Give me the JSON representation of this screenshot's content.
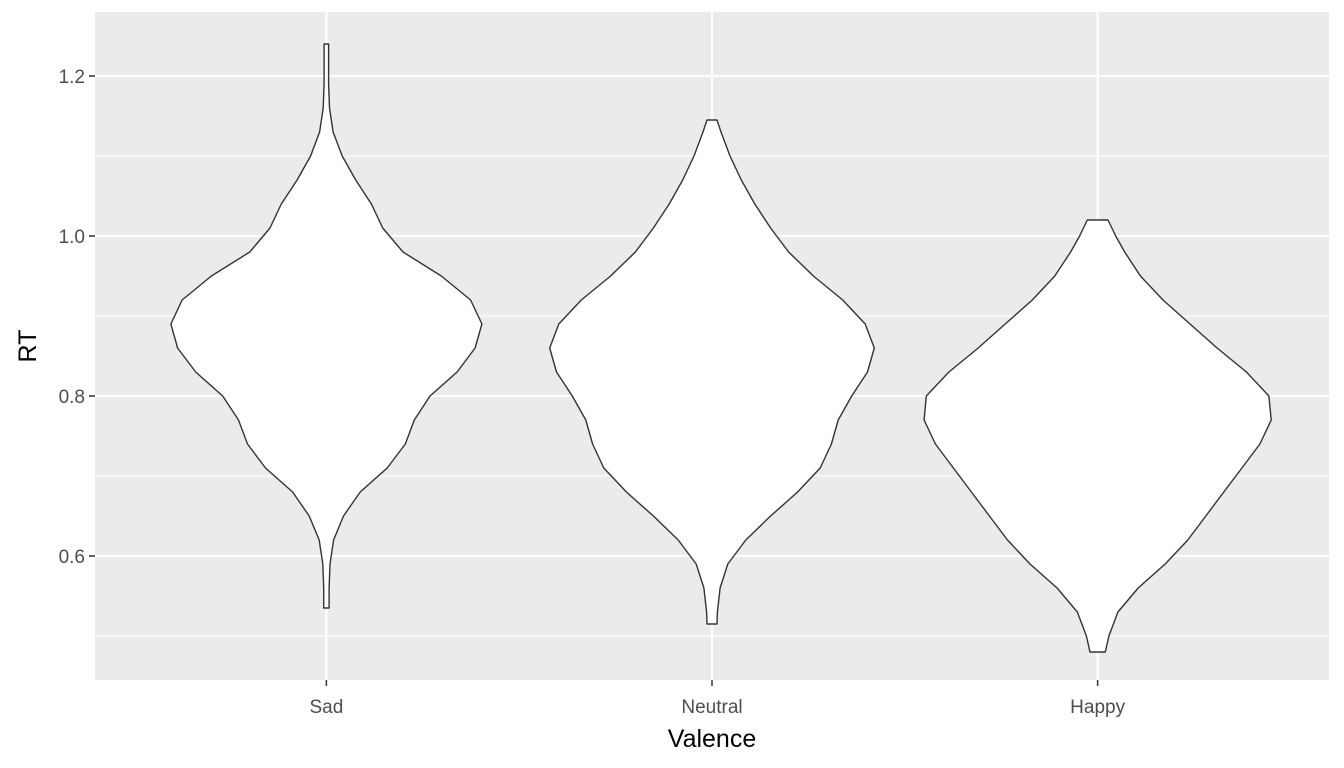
{
  "chart_data": {
    "type": "violin",
    "xlabel": "Valence",
    "ylabel": "RT",
    "categories": [
      "Sad",
      "Neutral",
      "Happy"
    ],
    "ylim": [
      0.445,
      1.28
    ],
    "yticks": [
      0.6,
      0.8,
      1.0,
      1.2
    ],
    "ytick_labels": [
      "0.6",
      "0.8",
      "1.0",
      "1.2"
    ],
    "grid": true,
    "legend": "none",
    "colors": {
      "panel": "#ebebeb",
      "grid": "#ffffff",
      "fill": "#ffffff",
      "outline": "#333333"
    },
    "violins": [
      {
        "category": "Sad",
        "profile": [
          [
            0.535,
            0.006
          ],
          [
            0.56,
            0.006
          ],
          [
            0.59,
            0.008
          ],
          [
            0.62,
            0.016
          ],
          [
            0.65,
            0.038
          ],
          [
            0.68,
            0.075
          ],
          [
            0.71,
            0.135
          ],
          [
            0.74,
            0.175
          ],
          [
            0.77,
            0.195
          ],
          [
            0.8,
            0.23
          ],
          [
            0.83,
            0.29
          ],
          [
            0.86,
            0.33
          ],
          [
            0.89,
            0.345
          ],
          [
            0.92,
            0.32
          ],
          [
            0.95,
            0.255
          ],
          [
            0.98,
            0.17
          ],
          [
            1.01,
            0.125
          ],
          [
            1.04,
            0.1
          ],
          [
            1.07,
            0.065
          ],
          [
            1.1,
            0.035
          ],
          [
            1.13,
            0.015
          ],
          [
            1.16,
            0.007
          ],
          [
            1.19,
            0.005
          ],
          [
            1.24,
            0.005
          ]
        ]
      },
      {
        "category": "Neutral",
        "profile": [
          [
            0.515,
            0.011
          ],
          [
            0.53,
            0.012
          ],
          [
            0.56,
            0.018
          ],
          [
            0.59,
            0.035
          ],
          [
            0.62,
            0.075
          ],
          [
            0.65,
            0.13
          ],
          [
            0.68,
            0.19
          ],
          [
            0.71,
            0.24
          ],
          [
            0.74,
            0.265
          ],
          [
            0.77,
            0.28
          ],
          [
            0.8,
            0.31
          ],
          [
            0.83,
            0.345
          ],
          [
            0.86,
            0.36
          ],
          [
            0.89,
            0.34
          ],
          [
            0.92,
            0.29
          ],
          [
            0.95,
            0.225
          ],
          [
            0.98,
            0.17
          ],
          [
            1.01,
            0.13
          ],
          [
            1.04,
            0.095
          ],
          [
            1.07,
            0.065
          ],
          [
            1.1,
            0.04
          ],
          [
            1.13,
            0.02
          ],
          [
            1.145,
            0.011
          ]
        ]
      },
      {
        "category": "Happy",
        "profile": [
          [
            0.48,
            0.017
          ],
          [
            0.5,
            0.025
          ],
          [
            0.53,
            0.045
          ],
          [
            0.56,
            0.09
          ],
          [
            0.59,
            0.15
          ],
          [
            0.62,
            0.2
          ],
          [
            0.65,
            0.24
          ],
          [
            0.68,
            0.28
          ],
          [
            0.71,
            0.32
          ],
          [
            0.74,
            0.36
          ],
          [
            0.77,
            0.385
          ],
          [
            0.8,
            0.38
          ],
          [
            0.83,
            0.33
          ],
          [
            0.86,
            0.265
          ],
          [
            0.89,
            0.205
          ],
          [
            0.92,
            0.145
          ],
          [
            0.95,
            0.095
          ],
          [
            0.98,
            0.06
          ],
          [
            1.0,
            0.04
          ],
          [
            1.02,
            0.023
          ]
        ]
      }
    ]
  }
}
